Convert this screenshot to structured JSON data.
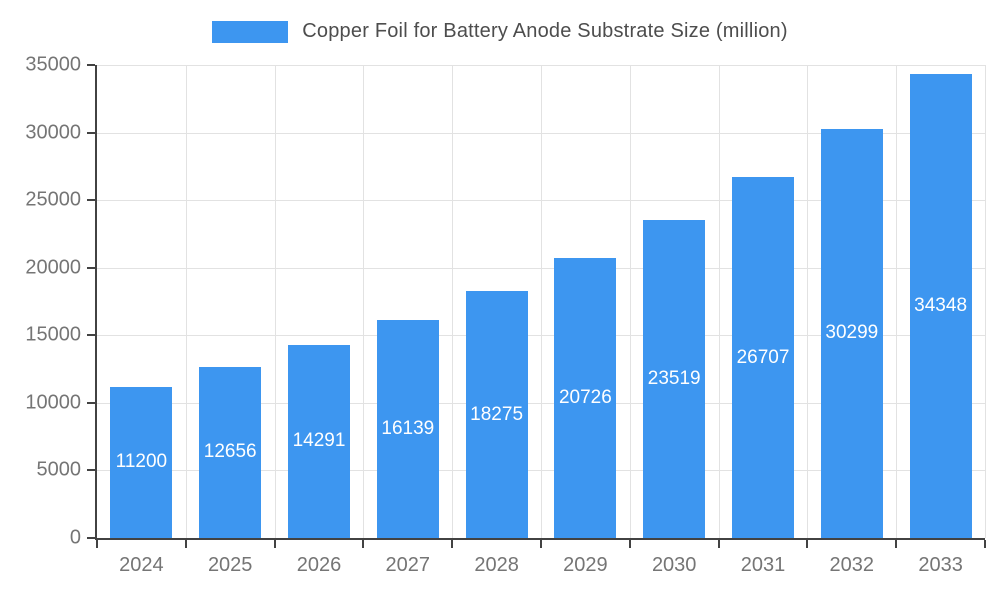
{
  "colors": {
    "bar": "#3D96F0",
    "axis": "#424242",
    "grid": "#e2e2e2",
    "tick_label": "#757575",
    "title_text": "#4d4d4d",
    "value_label": "#ffffff"
  },
  "chart_data": {
    "type": "bar",
    "title": "Copper Foil for Battery Anode Substrate Size (million)",
    "categories": [
      "2024",
      "2025",
      "2026",
      "2027",
      "2028",
      "2029",
      "2030",
      "2031",
      "2032",
      "2033"
    ],
    "values": [
      11200,
      12656,
      14291,
      16139,
      18275,
      20726,
      23519,
      26707,
      30299,
      34348
    ],
    "xlabel": "",
    "ylabel": "",
    "ylim": [
      0,
      35000
    ],
    "ytick_step": 5000,
    "yticks": [
      0,
      5000,
      10000,
      15000,
      20000,
      25000,
      30000,
      35000
    ],
    "grid": true,
    "legend_position": "top",
    "value_labels": "centered-inside-bars"
  }
}
